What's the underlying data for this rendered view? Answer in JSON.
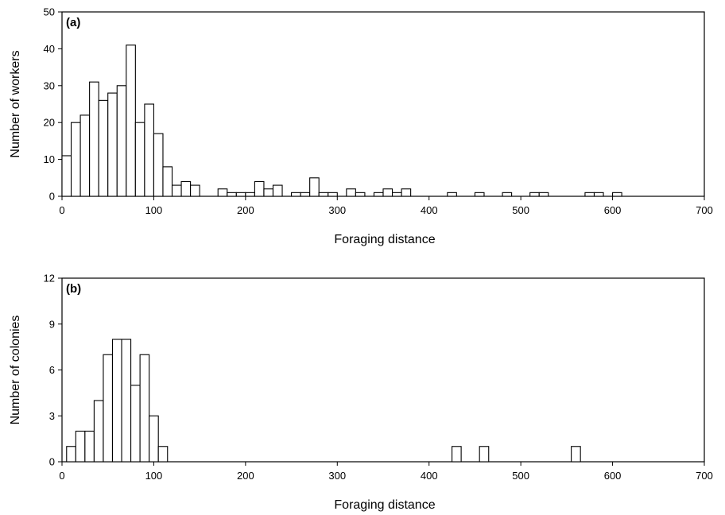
{
  "chart_data": [
    {
      "type": "bar",
      "panel_label": "(a)",
      "xlabel": "Foraging distance",
      "ylabel": "Number of workers",
      "xlim": [
        0,
        700
      ],
      "ylim": [
        0,
        50
      ],
      "xticks": [
        0,
        100,
        200,
        300,
        400,
        500,
        600,
        700
      ],
      "yticks": [
        0,
        10,
        20,
        30,
        40,
        50
      ],
      "bin_width": 10,
      "bin_starts": [
        0,
        10,
        20,
        30,
        40,
        50,
        60,
        70,
        80,
        90,
        100,
        110,
        120,
        130,
        140,
        170,
        180,
        190,
        200,
        210,
        220,
        230,
        250,
        260,
        270,
        280,
        290,
        310,
        320,
        340,
        350,
        360,
        370,
        420,
        450,
        480,
        510,
        520,
        570,
        580,
        600
      ],
      "values": [
        11,
        20,
        22,
        31,
        26,
        28,
        30,
        41,
        20,
        25,
        17,
        8,
        3,
        4,
        3,
        2,
        1,
        1,
        1,
        4,
        2,
        3,
        1,
        1,
        5,
        1,
        1,
        2,
        1,
        1,
        2,
        1,
        2,
        1,
        1,
        1,
        1,
        1,
        1,
        1,
        1
      ],
      "grid": false,
      "legend": "none"
    },
    {
      "type": "bar",
      "panel_label": "(b)",
      "xlabel": "Foraging distance",
      "ylabel": "Number of colonies",
      "xlim": [
        0,
        700
      ],
      "ylim": [
        0,
        12
      ],
      "xticks": [
        0,
        100,
        200,
        300,
        400,
        500,
        600,
        700
      ],
      "yticks": [
        0,
        3,
        6,
        9,
        12
      ],
      "bin_width": 10,
      "bin_starts": [
        5,
        15,
        25,
        35,
        45,
        55,
        65,
        75,
        85,
        95,
        105,
        425,
        455,
        555
      ],
      "values": [
        1,
        2,
        2,
        4,
        7,
        8,
        8,
        5,
        7,
        3,
        1,
        1,
        1,
        1
      ],
      "grid": false,
      "legend": "none"
    }
  ]
}
